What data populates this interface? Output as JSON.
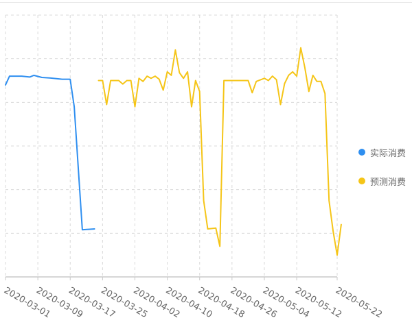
{
  "colors": {
    "actual": "#2f8ff0",
    "forecast": "#f5c518",
    "grid": "#d9d9d9",
    "axis": "#c8c8c8",
    "tick_label": "#666666"
  },
  "legend": {
    "position": "right",
    "items": [
      "实际消费",
      "预测消费"
    ]
  },
  "chart_data": {
    "type": "line",
    "title": "",
    "xlabel": "",
    "ylabel": "",
    "grid": true,
    "x_tick_labels": [
      "2020-03-01",
      "2020-03-09",
      "2020-03-17",
      "2020-03-25",
      "2020-04-02",
      "2020-04-10",
      "2020-04-18",
      "2020-04-26",
      "2020-05-04",
      "2020-05-12",
      "2020-05-22"
    ],
    "ylim": [
      0,
      6
    ],
    "series": [
      {
        "name": "实际消费",
        "points": [
          [
            "2020-03-01",
            4.4
          ],
          [
            "2020-03-02",
            4.6
          ],
          [
            "2020-03-05",
            4.6
          ],
          [
            "2020-03-07",
            4.58
          ],
          [
            "2020-03-08",
            4.62
          ],
          [
            "2020-03-10",
            4.57
          ],
          [
            "2020-03-12",
            4.56
          ],
          [
            "2020-03-15",
            4.53
          ],
          [
            "2020-03-17",
            4.53
          ],
          [
            "2020-03-18",
            3.9
          ],
          [
            "2020-03-20",
            1.08
          ],
          [
            "2020-03-23",
            1.1
          ]
        ]
      },
      {
        "name": "预测消费",
        "points": [
          [
            "2020-03-24",
            4.5
          ],
          [
            "2020-03-25",
            4.5
          ],
          [
            "2020-03-26",
            3.95
          ],
          [
            "2020-03-27",
            4.5
          ],
          [
            "2020-03-29",
            4.5
          ],
          [
            "2020-03-30",
            4.42
          ],
          [
            "2020-03-31",
            4.5
          ],
          [
            "2020-04-01",
            4.5
          ],
          [
            "2020-04-02",
            3.9
          ],
          [
            "2020-04-03",
            4.55
          ],
          [
            "2020-04-04",
            4.48
          ],
          [
            "2020-04-05",
            4.6
          ],
          [
            "2020-04-06",
            4.55
          ],
          [
            "2020-04-07",
            4.6
          ],
          [
            "2020-04-08",
            4.53
          ],
          [
            "2020-04-09",
            4.28
          ],
          [
            "2020-04-10",
            4.7
          ],
          [
            "2020-04-11",
            4.62
          ],
          [
            "2020-04-12",
            5.2
          ],
          [
            "2020-04-13",
            4.68
          ],
          [
            "2020-04-14",
            4.55
          ],
          [
            "2020-04-15",
            4.7
          ],
          [
            "2020-04-16",
            3.9
          ],
          [
            "2020-04-17",
            4.5
          ],
          [
            "2020-04-18",
            4.25
          ],
          [
            "2020-04-19",
            1.75
          ],
          [
            "2020-04-20",
            1.1
          ],
          [
            "2020-04-22",
            1.12
          ],
          [
            "2020-04-23",
            0.7
          ],
          [
            "2020-04-24",
            4.5
          ],
          [
            "2020-04-28",
            4.5
          ],
          [
            "2020-04-30",
            4.5
          ],
          [
            "2020-05-01",
            4.22
          ],
          [
            "2020-05-02",
            4.48
          ],
          [
            "2020-05-04",
            4.55
          ],
          [
            "2020-05-05",
            4.5
          ],
          [
            "2020-05-06",
            4.6
          ],
          [
            "2020-05-07",
            4.52
          ],
          [
            "2020-05-08",
            3.95
          ],
          [
            "2020-05-09",
            4.43
          ],
          [
            "2020-05-10",
            4.62
          ],
          [
            "2020-05-11",
            4.7
          ],
          [
            "2020-05-12",
            4.6
          ],
          [
            "2020-05-13",
            5.25
          ],
          [
            "2020-05-14",
            4.8
          ],
          [
            "2020-05-15",
            4.25
          ],
          [
            "2020-05-16",
            4.62
          ],
          [
            "2020-05-17",
            4.48
          ],
          [
            "2020-05-18",
            4.48
          ],
          [
            "2020-05-19",
            4.2
          ],
          [
            "2020-05-20",
            1.75
          ],
          [
            "2020-05-21",
            1.05
          ],
          [
            "2020-05-22",
            0.5
          ],
          [
            "2020-05-23",
            1.2
          ]
        ]
      }
    ]
  }
}
